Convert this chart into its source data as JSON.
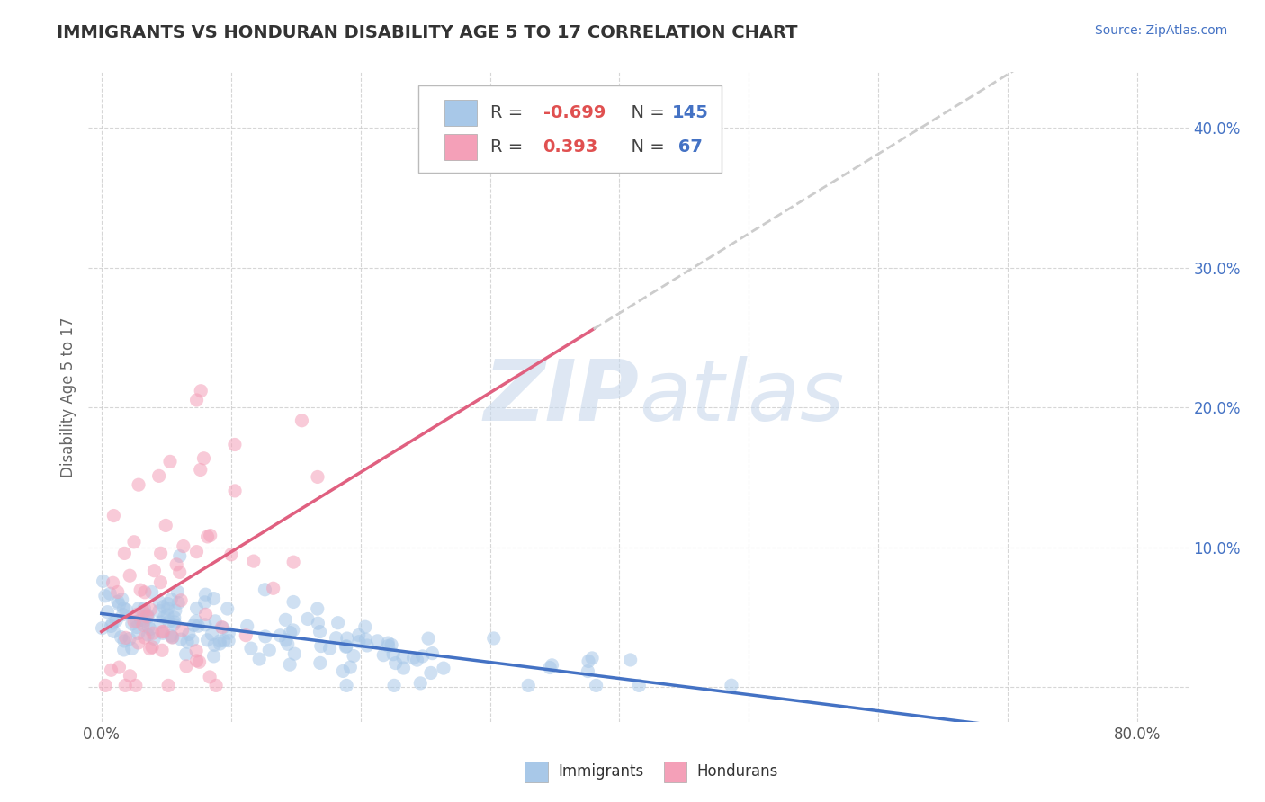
{
  "title": "IMMIGRANTS VS HONDURAN DISABILITY AGE 5 TO 17 CORRELATION CHART",
  "source_text": "Source: ZipAtlas.com",
  "ylabel": "Disability Age 5 to 17",
  "x_ticks": [
    0.0,
    0.1,
    0.2,
    0.3,
    0.4,
    0.5,
    0.6,
    0.7,
    0.8
  ],
  "y_ticks": [
    0.0,
    0.1,
    0.2,
    0.3,
    0.4
  ],
  "xlim": [
    -0.01,
    0.84
  ],
  "ylim": [
    -0.025,
    0.44
  ],
  "immigrants_color": "#a8c8e8",
  "hondurans_color": "#f4a0b8",
  "trend_immigrants_color": "#4472c4",
  "trend_hondurans_color": "#e06080",
  "trend_hondurans_ext_color": "#cccccc",
  "R_immigrants": -0.699,
  "N_immigrants": 145,
  "R_hondurans": 0.393,
  "N_hondurans": 67,
  "watermark_zip": "ZIP",
  "watermark_atlas": "atlas",
  "legend_immigrants": "Immigrants",
  "legend_hondurans": "Hondurans",
  "background_color": "#ffffff",
  "grid_color": "#cccccc",
  "title_color": "#333333",
  "axis_label_color": "#666666",
  "legend_R_color": "#e05050",
  "legend_N_color": "#4472c4"
}
